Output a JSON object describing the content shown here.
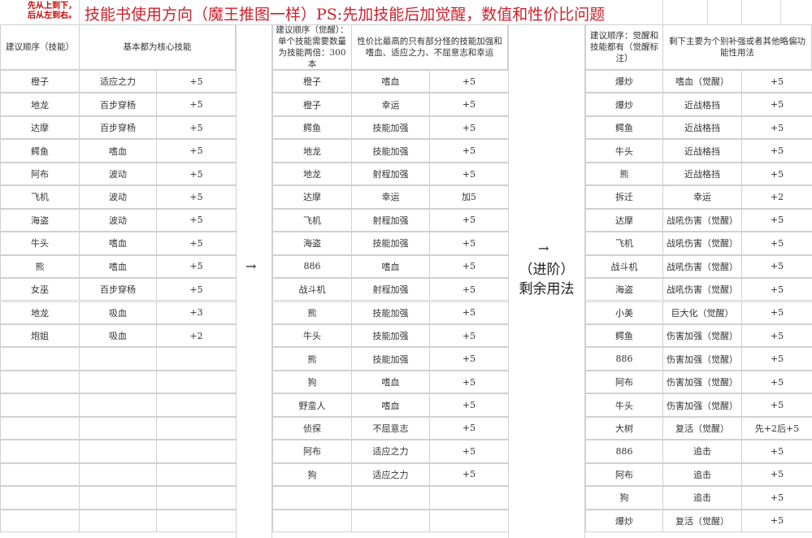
{
  "note": "先从上到下，\n后从左到右。",
  "title": "技能书使用方向（魔王推图一样）PS:先加技能后加觉醒，数值和性价比问题",
  "arrow": "→",
  "advanced": {
    "line1": "（进阶）",
    "line2": "剩余用法"
  },
  "tables": [
    {
      "header1": "建议顺序（技能）",
      "header2": "基本都为核心技能",
      "rows": [
        [
          "橙子",
          "适应之力",
          "+5"
        ],
        [
          "地龙",
          "百步穿杨",
          "+5"
        ],
        [
          "达摩",
          "百步穿杨",
          "+5"
        ],
        [
          "鳄鱼",
          "嗜血",
          "+5"
        ],
        [
          "阿布",
          "波动",
          "+5"
        ],
        [
          "飞机",
          "波动",
          "+5"
        ],
        [
          "海盗",
          "波动",
          "+5"
        ],
        [
          "牛头",
          "嗜血",
          "+5"
        ],
        [
          "熊",
          "嗜血",
          "+5"
        ],
        [
          "女巫",
          "百步穿杨",
          "+5"
        ],
        [
          "地龙",
          "吸血",
          "+3"
        ],
        [
          "炮姐",
          "吸血",
          "+2"
        ]
      ]
    },
    {
      "header1": "建议顺序（觉醒）：单个技能需要数量为技能两倍：300本",
      "header2": "性价比最高的只有部分怪的技能加强和嗜血、适应之力、不屈意志和幸运",
      "rows": [
        [
          "橙子",
          "嗜血",
          "+5"
        ],
        [
          "橙子",
          "幸运",
          "+5"
        ],
        [
          "鳄鱼",
          "技能加强",
          "+5"
        ],
        [
          "地龙",
          "技能加强",
          "+5"
        ],
        [
          "地龙",
          "射程加强",
          "+5"
        ],
        [
          "达摩",
          "幸运",
          "加5"
        ],
        [
          "飞机",
          "射程加强",
          "+5"
        ],
        [
          "海盗",
          "技能加强",
          "+5"
        ],
        [
          "886",
          "嗜血",
          "+5"
        ],
        [
          "战斗机",
          "射程加强",
          "+5"
        ],
        [
          "熊",
          "技能加强",
          "+5"
        ],
        [
          "牛头",
          "技能加强",
          "+5"
        ],
        [
          "熊",
          "技能加强",
          "+5"
        ],
        [
          "狗",
          "嗜血",
          "+5"
        ],
        [
          "野蛮人",
          "嗜血",
          "+5"
        ],
        [
          "侦探",
          "不屈意志",
          "+5"
        ],
        [
          "阿布",
          "适应之力",
          "+5"
        ],
        [
          "狗",
          "适应之力",
          "+5"
        ]
      ]
    },
    {
      "header1": "建议顺序：觉醒和技能都有（觉醒标注）",
      "header2": "剩下主要为个别补强或者其他略偏功能性用法",
      "rows": [
        [
          "爆炒",
          "嗜血（觉醒）",
          "+5"
        ],
        [
          "爆炒",
          "近战格挡",
          "+5"
        ],
        [
          "鳄鱼",
          "近战格挡",
          "+5"
        ],
        [
          "牛头",
          "近战格挡",
          "+5"
        ],
        [
          "熊",
          "近战格挡",
          "+5"
        ],
        [
          "拆迁",
          "幸运",
          "+2"
        ],
        [
          "达摩",
          "战吼伤害（觉醒）",
          "+5"
        ],
        [
          "飞机",
          "战吼伤害（觉醒）",
          "+5"
        ],
        [
          "战斗机",
          "战吼伤害（觉醒）",
          "+5"
        ],
        [
          "海盗",
          "战吼伤害（觉醒）",
          "+5"
        ],
        [
          "小美",
          "巨大化（觉醒）",
          "+5"
        ],
        [
          "鳄鱼",
          "伤害加强（觉醒）",
          "+5"
        ],
        [
          "886",
          "伤害加强（觉醒）",
          "+5"
        ],
        [
          "阿布",
          "伤害加强（觉醒）",
          "+5"
        ],
        [
          "牛头",
          "伤害加强（觉醒）",
          "+5"
        ],
        [
          "大树",
          "复活（觉醒）",
          "先+2后+5"
        ],
        [
          "886",
          "追击",
          "+5"
        ],
        [
          "阿布",
          "追击",
          "+5"
        ],
        [
          "狗",
          "追击",
          "+5"
        ],
        [
          "爆炒",
          "复活（觉醒）",
          "+5"
        ]
      ]
    }
  ]
}
